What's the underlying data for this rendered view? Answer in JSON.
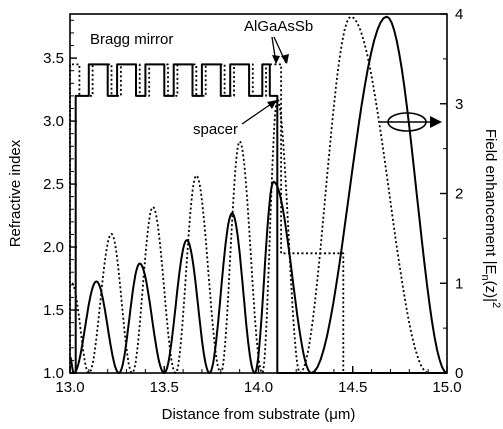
{
  "chart_data": {
    "type": "line",
    "title": "",
    "xlabel": "Distance from substrate (μm)",
    "ylabel": "Refractive index",
    "y2label_main": "Field enhancement |E",
    "y2label_sub": "n",
    "y2label_arg": "(z)|",
    "y2label_sup": "2",
    "xlim": [
      13.0,
      15.0
    ],
    "ylim": [
      1.0,
      3.85
    ],
    "y2lim": [
      0,
      4.0
    ],
    "x_ticks": [
      "13.0",
      "13.5",
      "14.0",
      "14.5",
      "15.0"
    ],
    "x_tick_values": [
      13.0,
      13.5,
      14.0,
      14.5,
      15.0
    ],
    "y_ticks": [
      "1.0",
      "1.5",
      "2.0",
      "2.5",
      "3.0",
      "3.5"
    ],
    "y_tick_values": [
      1.0,
      1.5,
      2.0,
      2.5,
      3.0,
      3.5
    ],
    "y2_ticks": [
      "0",
      "1",
      "2",
      "3",
      "4"
    ],
    "y2_tick_values": [
      0,
      1,
      2,
      3,
      4
    ],
    "annotations": {
      "bragg": "Bragg mirror",
      "algaassb": "AlGaAsSb",
      "spacer": "spacer"
    },
    "series": [
      {
        "style": "solid",
        "axis": "right",
        "peaks": [
          {
            "x": 13.0,
            "y": 0.18
          },
          {
            "x": 13.14,
            "y": 1.02
          },
          {
            "x": 13.37,
            "y": 1.22
          },
          {
            "x": 13.62,
            "y": 1.48
          },
          {
            "x": 13.86,
            "y": 1.78
          },
          {
            "x": 14.08,
            "y": 2.13
          },
          {
            "x": 14.68,
            "y": 3.97
          }
        ],
        "minima_x": [
          13.02,
          13.26,
          13.5,
          13.74,
          13.98,
          14.28,
          15.0
        ]
      },
      {
        "style": "dotted",
        "axis": "right",
        "peaks": [
          {
            "x": 13.01,
            "y": 1.0
          },
          {
            "x": 13.22,
            "y": 1.55
          },
          {
            "x": 13.44,
            "y": 1.85
          },
          {
            "x": 13.67,
            "y": 2.2
          },
          {
            "x": 13.9,
            "y": 2.58
          },
          {
            "x": 14.1,
            "y": 3.05
          },
          {
            "x": 14.49,
            "y": 3.97
          }
        ],
        "minima_x": [
          13.1,
          13.33,
          13.56,
          13.8,
          14.02,
          14.22,
          14.9
        ]
      },
      {
        "style": "solid",
        "axis": "left",
        "name_hint": "refractive index profile",
        "step_points": [
          [
            13.0,
            1.0
          ],
          [
            13.03,
            1.0
          ],
          [
            13.03,
            3.2
          ],
          [
            13.1,
            3.2
          ],
          [
            13.1,
            3.45
          ],
          [
            13.2,
            3.45
          ],
          [
            13.2,
            3.2
          ],
          [
            13.25,
            3.2
          ],
          [
            13.25,
            3.45
          ],
          [
            13.35,
            3.45
          ],
          [
            13.35,
            3.2
          ],
          [
            13.4,
            3.2
          ],
          [
            13.4,
            3.45
          ],
          [
            13.5,
            3.45
          ],
          [
            13.5,
            3.2
          ],
          [
            13.55,
            3.2
          ],
          [
            13.55,
            3.45
          ],
          [
            13.65,
            3.45
          ],
          [
            13.65,
            3.2
          ],
          [
            13.7,
            3.2
          ],
          [
            13.7,
            3.45
          ],
          [
            13.8,
            3.45
          ],
          [
            13.8,
            3.2
          ],
          [
            13.85,
            3.2
          ],
          [
            13.85,
            3.45
          ],
          [
            13.95,
            3.45
          ],
          [
            13.95,
            3.2
          ],
          [
            14.02,
            3.2
          ],
          [
            14.02,
            3.45
          ],
          [
            14.06,
            3.45
          ],
          [
            14.06,
            3.2
          ],
          [
            14.1,
            3.2
          ],
          [
            14.1,
            1.0
          ],
          [
            15.0,
            1.0
          ]
        ]
      },
      {
        "style": "dotted",
        "axis": "left",
        "name_hint": "refractive index profile",
        "step_points": [
          [
            13.0,
            1.0
          ],
          [
            13.0,
            3.45
          ],
          [
            13.05,
            3.45
          ],
          [
            13.05,
            3.2
          ],
          [
            13.12,
            3.2
          ],
          [
            13.12,
            3.45
          ],
          [
            13.22,
            3.45
          ],
          [
            13.22,
            3.2
          ],
          [
            13.27,
            3.2
          ],
          [
            13.27,
            3.45
          ],
          [
            13.37,
            3.45
          ],
          [
            13.37,
            3.2
          ],
          [
            13.42,
            3.2
          ],
          [
            13.42,
            3.45
          ],
          [
            13.52,
            3.45
          ],
          [
            13.52,
            3.2
          ],
          [
            13.57,
            3.2
          ],
          [
            13.57,
            3.45
          ],
          [
            13.67,
            3.45
          ],
          [
            13.67,
            3.2
          ],
          [
            13.72,
            3.2
          ],
          [
            13.72,
            3.45
          ],
          [
            13.82,
            3.45
          ],
          [
            13.82,
            3.2
          ],
          [
            13.87,
            3.2
          ],
          [
            13.87,
            3.45
          ],
          [
            13.97,
            3.45
          ],
          [
            13.97,
            3.2
          ],
          [
            14.04,
            3.2
          ],
          [
            14.04,
            3.45
          ],
          [
            14.12,
            3.45
          ],
          [
            14.12,
            1.95
          ],
          [
            14.45,
            1.95
          ],
          [
            14.45,
            1.0
          ],
          [
            15.0,
            1.0
          ]
        ]
      }
    ]
  }
}
